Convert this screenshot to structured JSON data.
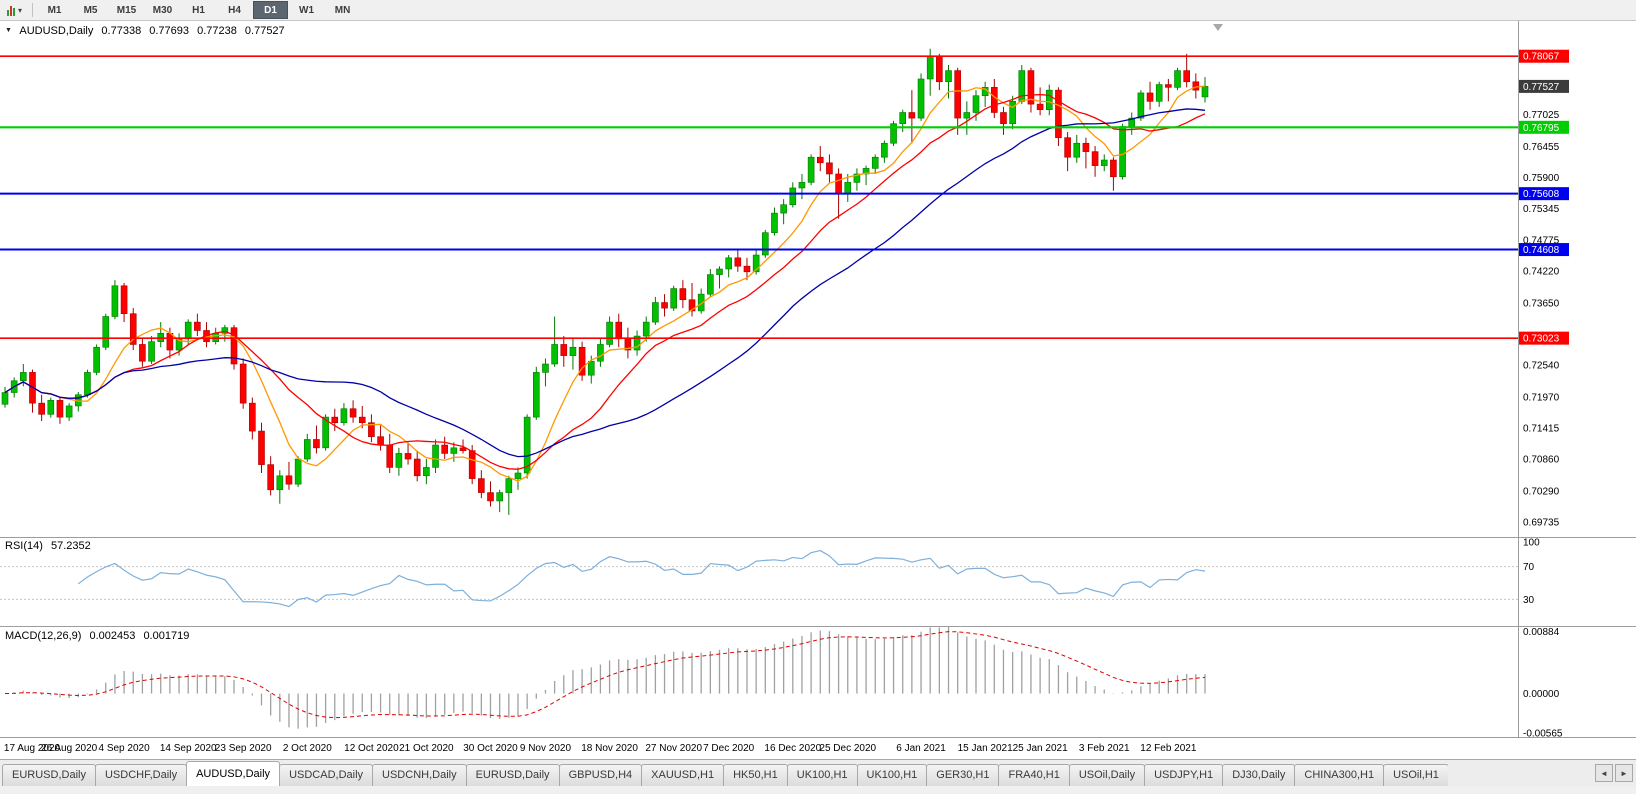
{
  "toolbar": {
    "timeframes": [
      "M1",
      "M5",
      "M15",
      "M30",
      "H1",
      "H4",
      "D1",
      "W1",
      "MN"
    ],
    "active_timeframe": "D1"
  },
  "chart": {
    "header": {
      "collapse_icon": "▼",
      "symbol": "AUDUSD,Daily",
      "open": "0.77338",
      "high": "0.77693",
      "low": "0.77238",
      "close": "0.77527"
    },
    "rsi_header": {
      "label": "RSI(14)",
      "value": "57.2352"
    },
    "macd_header": {
      "label": "MACD(12,26,9)",
      "value": "0.002453",
      "signal": "0.001719"
    }
  },
  "tabs": {
    "items": [
      {
        "label": "EURUSD,Daily",
        "active": false
      },
      {
        "label": "USDCHF,Daily",
        "active": false
      },
      {
        "label": "AUDUSD,Daily",
        "active": true
      },
      {
        "label": "USDCAD,Daily",
        "active": false
      },
      {
        "label": "USDCNH,Daily",
        "active": false
      },
      {
        "label": "EURUSD,Daily",
        "active": false
      },
      {
        "label": "GBPUSD,H4",
        "active": false
      },
      {
        "label": "XAUUSD,H1",
        "active": false
      },
      {
        "label": "HK50,H1",
        "active": false
      },
      {
        "label": "UK100,H1",
        "active": false
      },
      {
        "label": "UK100,H1",
        "active": false
      },
      {
        "label": "GER30,H1",
        "active": false
      },
      {
        "label": "FRA40,H1",
        "active": false
      },
      {
        "label": "USOil,Daily",
        "active": false
      },
      {
        "label": "USDJPY,H1",
        "active": false
      },
      {
        "label": "DJ30,Daily",
        "active": false
      },
      {
        "label": "CHINA300,H1",
        "active": false
      },
      {
        "label": "USOil,H1",
        "active": false
      }
    ],
    "scroll_left_icon": "◄",
    "scroll_right_icon": "►"
  },
  "chart_data": {
    "type": "candlestick",
    "title": "AUDUSD,Daily",
    "symbol": "AUDUSD",
    "timeframe": "Daily",
    "price_range": [
      0.69465,
      0.78715
    ],
    "ohlc": [
      [
        0.7184,
        0.7215,
        0.7178,
        0.7205
      ],
      [
        0.7205,
        0.7232,
        0.7196,
        0.7226
      ],
      [
        0.7226,
        0.7256,
        0.7216,
        0.7241
      ],
      [
        0.7241,
        0.7246,
        0.7169,
        0.7186
      ],
      [
        0.7186,
        0.7201,
        0.7154,
        0.7166
      ],
      [
        0.7166,
        0.7196,
        0.716,
        0.7191
      ],
      [
        0.7191,
        0.7196,
        0.7149,
        0.7161
      ],
      [
        0.7161,
        0.7186,
        0.7154,
        0.7181
      ],
      [
        0.7181,
        0.7206,
        0.7171,
        0.7201
      ],
      [
        0.7201,
        0.7246,
        0.7196,
        0.7241
      ],
      [
        0.7241,
        0.7291,
        0.7236,
        0.7286
      ],
      [
        0.7286,
        0.7346,
        0.7281,
        0.7341
      ],
      [
        0.7341,
        0.7406,
        0.7336,
        0.7396
      ],
      [
        0.7396,
        0.7401,
        0.7331,
        0.7346
      ],
      [
        0.7346,
        0.7356,
        0.7281,
        0.7291
      ],
      [
        0.7291,
        0.7301,
        0.7251,
        0.7261
      ],
      [
        0.7261,
        0.7306,
        0.7256,
        0.7296
      ],
      [
        0.7296,
        0.7331,
        0.7286,
        0.7311
      ],
      [
        0.7311,
        0.7321,
        0.7266,
        0.7281
      ],
      [
        0.7281,
        0.7311,
        0.7271,
        0.7301
      ],
      [
        0.7301,
        0.7336,
        0.7291,
        0.7331
      ],
      [
        0.7331,
        0.7346,
        0.7306,
        0.7316
      ],
      [
        0.7316,
        0.7331,
        0.7286,
        0.7296
      ],
      [
        0.7296,
        0.7321,
        0.7291,
        0.7311
      ],
      [
        0.7311,
        0.7326,
        0.7296,
        0.7321
      ],
      [
        0.7321,
        0.7326,
        0.7246,
        0.7256
      ],
      [
        0.7256,
        0.7266,
        0.7176,
        0.7186
      ],
      [
        0.7186,
        0.7196,
        0.7121,
        0.7136
      ],
      [
        0.7136,
        0.7151,
        0.7061,
        0.7076
      ],
      [
        0.7076,
        0.7091,
        0.7021,
        0.7031
      ],
      [
        0.7031,
        0.7066,
        0.7006,
        0.7056
      ],
      [
        0.7056,
        0.7081,
        0.7031,
        0.7041
      ],
      [
        0.7041,
        0.7091,
        0.7036,
        0.7086
      ],
      [
        0.7086,
        0.7131,
        0.7081,
        0.7121
      ],
      [
        0.7121,
        0.7146,
        0.7096,
        0.7106
      ],
      [
        0.7106,
        0.7166,
        0.7101,
        0.7161
      ],
      [
        0.7161,
        0.7176,
        0.7136,
        0.7151
      ],
      [
        0.7151,
        0.7186,
        0.7146,
        0.7176
      ],
      [
        0.7176,
        0.7191,
        0.7151,
        0.7161
      ],
      [
        0.7161,
        0.7181,
        0.7141,
        0.7151
      ],
      [
        0.7151,
        0.7166,
        0.7116,
        0.7126
      ],
      [
        0.7126,
        0.7146,
        0.7101,
        0.7111
      ],
      [
        0.7111,
        0.7131,
        0.7061,
        0.7071
      ],
      [
        0.7071,
        0.7106,
        0.7056,
        0.7096
      ],
      [
        0.7096,
        0.7116,
        0.7076,
        0.7086
      ],
      [
        0.7086,
        0.7101,
        0.7046,
        0.7056
      ],
      [
        0.7056,
        0.7086,
        0.7041,
        0.7071
      ],
      [
        0.7071,
        0.7121,
        0.7061,
        0.7111
      ],
      [
        0.7111,
        0.7126,
        0.7086,
        0.7096
      ],
      [
        0.7096,
        0.7116,
        0.7081,
        0.7106
      ],
      [
        0.7106,
        0.7121,
        0.7096,
        0.7101
      ],
      [
        0.7101,
        0.7111,
        0.7041,
        0.7051
      ],
      [
        0.7051,
        0.7066,
        0.7016,
        0.7026
      ],
      [
        0.7026,
        0.7046,
        0.7001,
        0.7011
      ],
      [
        0.7011,
        0.7031,
        0.6991,
        0.7026
      ],
      [
        0.7026,
        0.7056,
        0.6986,
        0.7051
      ],
      [
        0.7051,
        0.7071,
        0.7031,
        0.7061
      ],
      [
        0.7061,
        0.7166,
        0.7051,
        0.7161
      ],
      [
        0.7161,
        0.7251,
        0.7156,
        0.7241
      ],
      [
        0.7241,
        0.7266,
        0.7216,
        0.7256
      ],
      [
        0.7256,
        0.7341,
        0.7251,
        0.7291
      ],
      [
        0.7291,
        0.7306,
        0.7251,
        0.7271
      ],
      [
        0.7271,
        0.7301,
        0.7246,
        0.7286
      ],
      [
        0.7286,
        0.7296,
        0.7226,
        0.7236
      ],
      [
        0.7236,
        0.7271,
        0.7221,
        0.7261
      ],
      [
        0.7261,
        0.7301,
        0.7251,
        0.7291
      ],
      [
        0.7291,
        0.7341,
        0.7286,
        0.7331
      ],
      [
        0.7331,
        0.7346,
        0.7286,
        0.7301
      ],
      [
        0.7301,
        0.7321,
        0.7266,
        0.7281
      ],
      [
        0.7281,
        0.7316,
        0.7271,
        0.7306
      ],
      [
        0.7306,
        0.7341,
        0.7296,
        0.7331
      ],
      [
        0.7331,
        0.7376,
        0.7326,
        0.7366
      ],
      [
        0.7366,
        0.7381,
        0.7341,
        0.7356
      ],
      [
        0.7356,
        0.7396,
        0.7351,
        0.7391
      ],
      [
        0.7391,
        0.7406,
        0.7356,
        0.7371
      ],
      [
        0.7371,
        0.7401,
        0.7341,
        0.7351
      ],
      [
        0.7351,
        0.7391,
        0.7346,
        0.7381
      ],
      [
        0.7381,
        0.7426,
        0.7376,
        0.7416
      ],
      [
        0.7416,
        0.7431,
        0.7391,
        0.7426
      ],
      [
        0.7426,
        0.7451,
        0.7411,
        0.7446
      ],
      [
        0.7446,
        0.7461,
        0.7421,
        0.7431
      ],
      [
        0.7431,
        0.7446,
        0.7406,
        0.7421
      ],
      [
        0.7421,
        0.7461,
        0.7416,
        0.7451
      ],
      [
        0.7451,
        0.7496,
        0.7446,
        0.7491
      ],
      [
        0.7491,
        0.7536,
        0.7486,
        0.7526
      ],
      [
        0.7526,
        0.7551,
        0.7506,
        0.7541
      ],
      [
        0.7541,
        0.7581,
        0.7536,
        0.7571
      ],
      [
        0.7571,
        0.7596,
        0.7551,
        0.7581
      ],
      [
        0.7581,
        0.7631,
        0.7576,
        0.7626
      ],
      [
        0.7626,
        0.7646,
        0.7601,
        0.7616
      ],
      [
        0.7616,
        0.7631,
        0.7581,
        0.7596
      ],
      [
        0.7596,
        0.7606,
        0.7516,
        0.7561
      ],
      [
        0.7561,
        0.7596,
        0.7546,
        0.7581
      ],
      [
        0.7581,
        0.7606,
        0.7566,
        0.7596
      ],
      [
        0.7596,
        0.7611,
        0.7576,
        0.7606
      ],
      [
        0.7606,
        0.7631,
        0.7596,
        0.7626
      ],
      [
        0.7626,
        0.7656,
        0.7616,
        0.7651
      ],
      [
        0.7651,
        0.7691,
        0.7646,
        0.7686
      ],
      [
        0.7686,
        0.7711,
        0.7671,
        0.7706
      ],
      [
        0.7706,
        0.7746,
        0.7651,
        0.7696
      ],
      [
        0.7696,
        0.7776,
        0.7691,
        0.7766
      ],
      [
        0.7766,
        0.782,
        0.7736,
        0.7806
      ],
      [
        0.7806,
        0.7811,
        0.7746,
        0.7761
      ],
      [
        0.7761,
        0.7791,
        0.7731,
        0.7781
      ],
      [
        0.7781,
        0.7786,
        0.7666,
        0.7696
      ],
      [
        0.7696,
        0.7726,
        0.7666,
        0.7706
      ],
      [
        0.7706,
        0.7746,
        0.7691,
        0.7736
      ],
      [
        0.7736,
        0.7761,
        0.7716,
        0.7751
      ],
      [
        0.7751,
        0.7766,
        0.7696,
        0.7706
      ],
      [
        0.7706,
        0.7716,
        0.7666,
        0.7686
      ],
      [
        0.7686,
        0.7736,
        0.7676,
        0.7726
      ],
      [
        0.7726,
        0.7791,
        0.7721,
        0.7781
      ],
      [
        0.7781,
        0.7786,
        0.7706,
        0.7721
      ],
      [
        0.7721,
        0.7751,
        0.7701,
        0.7711
      ],
      [
        0.7711,
        0.7756,
        0.7701,
        0.7746
      ],
      [
        0.7746,
        0.7751,
        0.7646,
        0.7661
      ],
      [
        0.7661,
        0.7671,
        0.7601,
        0.7626
      ],
      [
        0.7626,
        0.7666,
        0.7616,
        0.7651
      ],
      [
        0.7651,
        0.7661,
        0.7606,
        0.7636
      ],
      [
        0.7636,
        0.7646,
        0.7591,
        0.7611
      ],
      [
        0.7611,
        0.7631,
        0.7601,
        0.7621
      ],
      [
        0.7621,
        0.7626,
        0.7566,
        0.7591
      ],
      [
        0.7591,
        0.7686,
        0.7586,
        0.7681
      ],
      [
        0.7681,
        0.7706,
        0.7666,
        0.7696
      ],
      [
        0.7696,
        0.7746,
        0.7691,
        0.7741
      ],
      [
        0.7741,
        0.7761,
        0.7711,
        0.7726
      ],
      [
        0.7726,
        0.7761,
        0.7716,
        0.7756
      ],
      [
        0.7756,
        0.7766,
        0.7726,
        0.7751
      ],
      [
        0.7751,
        0.7786,
        0.7746,
        0.7781
      ],
      [
        0.7781,
        0.7811,
        0.7751,
        0.7761
      ],
      [
        0.7761,
        0.7776,
        0.7731,
        0.7746
      ],
      [
        0.77338,
        0.77693,
        0.77238,
        0.77527
      ]
    ],
    "date_ticks": [
      {
        "i": 0,
        "label": "17 Aug 2020"
      },
      {
        "i": 7,
        "label": "26 Aug 2020"
      },
      {
        "i": 13,
        "label": "4 Sep 2020"
      },
      {
        "i": 20,
        "label": "14 Sep 2020"
      },
      {
        "i": 26,
        "label": "23 Sep 2020"
      },
      {
        "i": 33,
        "label": "2 Oct 2020"
      },
      {
        "i": 40,
        "label": "12 Oct 2020"
      },
      {
        "i": 46,
        "label": "21 Oct 2020"
      },
      {
        "i": 53,
        "label": "30 Oct 2020"
      },
      {
        "i": 59,
        "label": "9 Nov 2020"
      },
      {
        "i": 66,
        "label": "18 Nov 2020"
      },
      {
        "i": 73,
        "label": "27 Nov 2020"
      },
      {
        "i": 79,
        "label": "7 Dec 2020"
      },
      {
        "i": 86,
        "label": "16 Dec 2020"
      },
      {
        "i": 92,
        "label": "25 Dec 2020"
      },
      {
        "i": 100,
        "label": "6 Jan 2021"
      },
      {
        "i": 107,
        "label": "15 Jan 2021"
      },
      {
        "i": 113,
        "label": "25 Jan 2021"
      },
      {
        "i": 120,
        "label": "3 Feb 2021"
      },
      {
        "i": 127,
        "label": "12 Feb 2021"
      }
    ],
    "price_ticks": [
      "0.77025",
      "0.76455",
      "0.75900",
      "0.75345",
      "0.74775",
      "0.74220",
      "0.73650",
      "0.72540",
      "0.71970",
      "0.71415",
      "0.70860",
      "0.70290",
      "0.69735"
    ],
    "levels": [
      {
        "value": 0.78067,
        "label": "0.78067",
        "color": "#FF0000",
        "width": 1.6
      },
      {
        "value": 0.76795,
        "label": "0.76795",
        "color": "#00CE00",
        "width": 2.2
      },
      {
        "value": 0.75608,
        "label": "0.75608",
        "color": "#0000F0",
        "width": 2
      },
      {
        "value": 0.74608,
        "label": "0.74608",
        "color": "#0000F0",
        "width": 2
      },
      {
        "value": 0.73023,
        "label": "0.73023",
        "color": "#FF0000",
        "width": 1.6
      }
    ],
    "current_price": {
      "value": 0.77527,
      "label": "0.77527",
      "badge_color": "#3C3C3C"
    },
    "moving_averages": [
      {
        "period": 7,
        "color": "#FF9900"
      },
      {
        "period": 14,
        "color": "#FF0000"
      },
      {
        "period": 30,
        "color": "#0000A8"
      }
    ],
    "rsi": {
      "period": 14,
      "current": 57.2352,
      "color": "#7EB0DC",
      "levels": [
        70,
        30
      ],
      "scale": [
        "100",
        "70",
        "30"
      ],
      "range": [
        0,
        100
      ]
    },
    "macd": {
      "fast": 12,
      "slow": 26,
      "signal_period": 9,
      "current": 0.002453,
      "signal_current": 0.001719,
      "histogram_color": "#A0A0A0",
      "signal_color": "#E00000",
      "scale": [
        "0.00884",
        "0.00000",
        "-0.00565"
      ],
      "range": [
        -0.0062,
        0.0095
      ]
    },
    "colors": {
      "up": "#00C000",
      "up_border": "#007800",
      "down": "#FF0000",
      "down_border": "#A80000",
      "axis_text": "#000000",
      "shift_marker": "#A8A8A8",
      "separator": "#9C9C9C"
    }
  }
}
